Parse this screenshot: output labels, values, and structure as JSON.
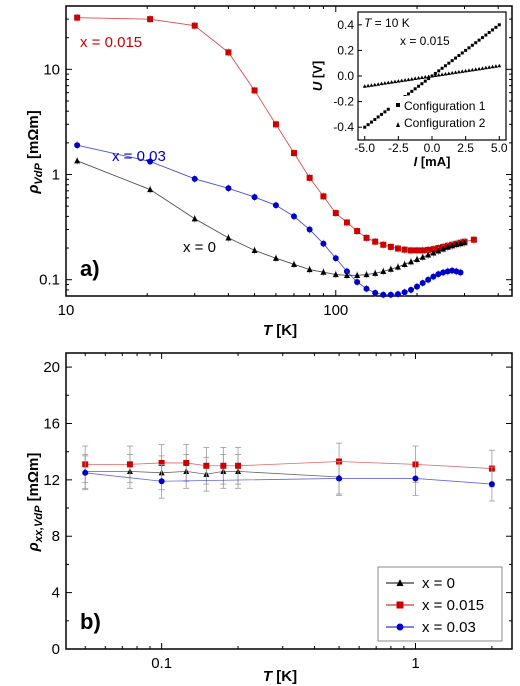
{
  "chart_data": [
    {
      "type": "line",
      "panel_label": "a)",
      "xlabel": "T [K]",
      "ylabel": "ρVdP [mΩm]",
      "xscale": "log",
      "yscale": "log",
      "xlim": [
        10,
        450
      ],
      "ylim": [
        0.07,
        40
      ],
      "xticks": [
        10,
        100
      ],
      "xtick_labels": [
        "10",
        "100"
      ],
      "yticks": [
        0.1,
        1,
        10
      ],
      "ytick_labels": [
        "0.1",
        "1",
        "10"
      ],
      "series": [
        {
          "name": "x = 0.015",
          "color": "#cc0000",
          "marker": "square",
          "x": [
            11,
            20.5,
            30,
            40,
            50,
            60,
            70,
            80,
            90,
            100,
            110,
            120,
            130,
            140,
            150,
            160,
            170,
            180,
            190,
            200,
            210,
            220,
            230,
            240,
            250,
            260,
            270,
            280,
            290,
            300,
            325
          ],
          "y": [
            31,
            30,
            26,
            14.5,
            6.3,
            3.0,
            1.6,
            0.93,
            0.62,
            0.43,
            0.35,
            0.29,
            0.25,
            0.23,
            0.215,
            0.205,
            0.198,
            0.193,
            0.19,
            0.19,
            0.19,
            0.192,
            0.195,
            0.2,
            0.205,
            0.21,
            0.215,
            0.22,
            0.225,
            0.23,
            0.24
          ]
        },
        {
          "name": "x = 0.03",
          "color": "#0000cc",
          "marker": "circle",
          "x": [
            11,
            20.5,
            30,
            40,
            50,
            60,
            70,
            80,
            90,
            100,
            110,
            120,
            130,
            140,
            150,
            160,
            170,
            180,
            190,
            200,
            210,
            220,
            230,
            240,
            250,
            260,
            270,
            280,
            290
          ],
          "y": [
            1.9,
            1.33,
            0.91,
            0.74,
            0.61,
            0.51,
            0.4,
            0.3,
            0.22,
            0.16,
            0.12,
            0.095,
            0.082,
            0.075,
            0.072,
            0.072,
            0.073,
            0.076,
            0.08,
            0.086,
            0.093,
            0.1,
            0.107,
            0.113,
            0.117,
            0.12,
            0.122,
            0.12,
            0.117
          ]
        },
        {
          "name": "x = 0",
          "color": "#000000",
          "marker": "triangle",
          "x": [
            11,
            20.5,
            30,
            40,
            50,
            60,
            70,
            80,
            90,
            100,
            110,
            120,
            130,
            140,
            150,
            160,
            170,
            180,
            190,
            200,
            210,
            220,
            230,
            240,
            250,
            260,
            270,
            280,
            290,
            300
          ],
          "y": [
            1.35,
            0.72,
            0.38,
            0.25,
            0.19,
            0.16,
            0.14,
            0.125,
            0.118,
            0.112,
            0.11,
            0.11,
            0.112,
            0.115,
            0.12,
            0.126,
            0.132,
            0.14,
            0.148,
            0.156,
            0.164,
            0.172,
            0.18,
            0.188,
            0.196,
            0.204,
            0.21,
            0.216,
            0.22,
            0.225
          ]
        }
      ],
      "annotations": [
        {
          "text": "x = 0.015",
          "color": "#cc0000",
          "series": "x = 0.015"
        },
        {
          "text": "x = 0.03",
          "color": "#0000cc",
          "series": "x = 0.03"
        },
        {
          "text": "x = 0",
          "color": "#000000",
          "series": "x = 0"
        }
      ]
    },
    {
      "type": "scatter",
      "inset": true,
      "xlabel": "I [mA]",
      "ylabel": "U [V]",
      "xlim": [
        -5.5,
        5.5
      ],
      "ylim": [
        -0.5,
        0.5
      ],
      "xticks": [
        -5,
        -2.5,
        0,
        2.5,
        5
      ],
      "xtick_labels": [
        "-5.0",
        "-2.5",
        "0.0",
        "2.5",
        "5.0"
      ],
      "yticks": [
        -0.4,
        -0.2,
        0,
        0.2,
        0.4
      ],
      "ytick_labels": [
        "-0.4",
        "-0.2",
        "0.0",
        "0.2",
        "0.4"
      ],
      "title_prefix": "T",
      "title_suffix": " = 10 K",
      "note": "x = 0.015",
      "series": [
        {
          "name": "Configuration 1",
          "marker": "square",
          "x0": -5,
          "x1": 5,
          "y0": -0.4,
          "y1": 0.4,
          "points": 41
        },
        {
          "name": "Configuration 2",
          "marker": "triangle",
          "x0": -5,
          "x1": 5,
          "y0": -0.08,
          "y1": 0.08,
          "points": 41
        }
      ]
    },
    {
      "type": "line",
      "panel_label": "b)",
      "xlabel": "T [K]",
      "ylabel": "ρxx,VdP [mΩm]",
      "xscale": "log",
      "yscale": "linear",
      "xlim": [
        0.042,
        2.4
      ],
      "ylim": [
        0,
        21
      ],
      "xticks": [
        0.1,
        1
      ],
      "xtick_labels": [
        "0.1",
        "1"
      ],
      "yticks": [
        0,
        4,
        8,
        12,
        16,
        20
      ],
      "ytick_labels": [
        "0",
        "4",
        "8",
        "12",
        "16",
        "20"
      ],
      "legend_position": "bottom-right",
      "series": [
        {
          "name": "x = 0",
          "color": "#000000",
          "marker": "triangle",
          "x": [
            0.05,
            0.075,
            0.1,
            0.125,
            0.15,
            0.175,
            0.2,
            0.5
          ],
          "y": [
            12.6,
            12.6,
            12.5,
            12.6,
            12.4,
            12.6,
            12.6,
            12.2
          ],
          "err": [
            1.2,
            1.2,
            1.2,
            1.2,
            1.2,
            1.2,
            1.2,
            1.2
          ]
        },
        {
          "name": "x = 0.015",
          "color": "#cc0000",
          "marker": "square",
          "x": [
            0.05,
            0.075,
            0.1,
            0.125,
            0.15,
            0.175,
            0.2,
            0.5,
            1.0,
            2.0
          ],
          "y": [
            13.1,
            13.1,
            13.2,
            13.2,
            13.0,
            13.0,
            13.0,
            13.3,
            13.1,
            12.8
          ],
          "err": [
            1.3,
            1.3,
            1.3,
            1.3,
            1.3,
            1.3,
            1.3,
            1.3,
            1.3,
            1.3
          ]
        },
        {
          "name": "x = 0.03",
          "color": "#0000cc",
          "marker": "circle",
          "x": [
            0.05,
            0.1,
            0.5,
            1.0,
            2.0
          ],
          "y": [
            12.5,
            11.9,
            12.1,
            12.1,
            11.7
          ],
          "err": [
            1.2,
            1.2,
            1.2,
            1.2,
            1.2
          ]
        }
      ]
    }
  ]
}
